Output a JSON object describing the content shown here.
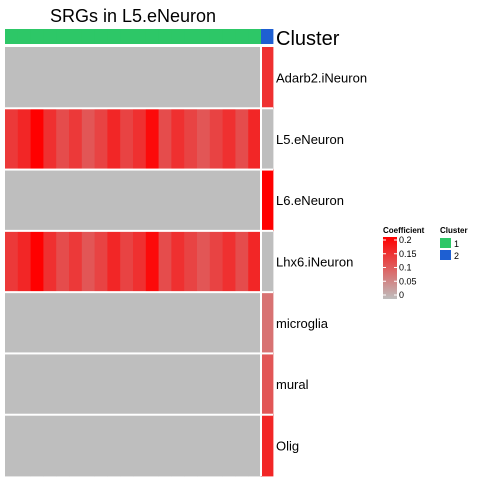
{
  "chart_data": {
    "type": "heatmap",
    "title": "SRGs in L5.eNeuron",
    "annotation_label": "Cluster",
    "rows": [
      "Adarb2.iNeuron",
      "L5.eNeuron",
      "L6.eNeuron",
      "Lhx6.iNeuron",
      "microglia",
      "mural",
      "Olig"
    ],
    "column_cluster": [
      1,
      1,
      1,
      1,
      1,
      1,
      1,
      1,
      1,
      1,
      1,
      1,
      1,
      1,
      1,
      1,
      1,
      1,
      1,
      1,
      2
    ],
    "values": [
      [
        0,
        0,
        0,
        0,
        0,
        0,
        0,
        0,
        0,
        0,
        0,
        0,
        0,
        0,
        0,
        0,
        0,
        0,
        0,
        0,
        0.15
      ],
      [
        0.14,
        0.16,
        0.2,
        0.15,
        0.12,
        0.14,
        0.11,
        0.13,
        0.16,
        0.13,
        0.15,
        0.19,
        0.12,
        0.15,
        0.13,
        0.11,
        0.13,
        0.15,
        0.12,
        0.16,
        0
      ],
      [
        0,
        0,
        0,
        0,
        0,
        0,
        0,
        0,
        0,
        0,
        0,
        0,
        0,
        0,
        0,
        0,
        0,
        0,
        0,
        0,
        0.2
      ],
      [
        0.14,
        0.16,
        0.2,
        0.15,
        0.12,
        0.14,
        0.11,
        0.13,
        0.16,
        0.13,
        0.15,
        0.19,
        0.12,
        0.15,
        0.13,
        0.11,
        0.13,
        0.15,
        0.12,
        0.16,
        0
      ],
      [
        0,
        0,
        0,
        0,
        0,
        0,
        0,
        0,
        0,
        0,
        0,
        0,
        0,
        0,
        0,
        0,
        0,
        0,
        0,
        0,
        0.08
      ],
      [
        0,
        0,
        0,
        0,
        0,
        0,
        0,
        0,
        0,
        0,
        0,
        0,
        0,
        0,
        0,
        0,
        0,
        0,
        0,
        0,
        0.11
      ],
      [
        0,
        0,
        0,
        0,
        0,
        0,
        0,
        0,
        0,
        0,
        0,
        0,
        0,
        0,
        0,
        0,
        0,
        0,
        0,
        0,
        0.16
      ]
    ],
    "value_range": [
      0,
      0.2
    ],
    "color_scale": {
      "low": "#bebebe",
      "high": "#ff0000"
    },
    "legend": {
      "coefficient_title": "Coefficient",
      "coefficient_ticks": [
        {
          "value": 0.2,
          "label": "0.2"
        },
        {
          "value": 0.15,
          "label": "0.15"
        },
        {
          "value": 0.1,
          "label": "0.1"
        },
        {
          "value": 0.05,
          "label": "0.05"
        },
        {
          "value": 0,
          "label": "0"
        }
      ],
      "cluster_title": "Cluster",
      "clusters": [
        {
          "label": "1",
          "color": "#2dc767"
        },
        {
          "label": "2",
          "color": "#1e5fd2"
        }
      ]
    }
  }
}
